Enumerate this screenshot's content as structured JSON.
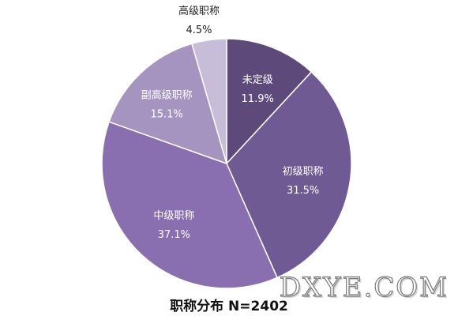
{
  "chart_data": {
    "type": "pie",
    "title": "职称分布 N=2402",
    "slices": [
      {
        "label": "未定级",
        "value": 11.9,
        "value_text": "11.9%",
        "color": "#5e4a7a"
      },
      {
        "label": "初级职称",
        "value": 31.5,
        "value_text": "31.5%",
        "color": "#6f5a93"
      },
      {
        "label": "中级职称",
        "value": 37.1,
        "value_text": "37.1%",
        "color": "#8a6fb0"
      },
      {
        "label": "副高级职称",
        "value": 15.1,
        "value_text": "15.1%",
        "color": "#a594c0"
      },
      {
        "label": "高级职称",
        "value": 4.5,
        "value_text": "4.5%",
        "color": "#c8bdd8"
      }
    ]
  },
  "watermark": "DXYE.COM"
}
